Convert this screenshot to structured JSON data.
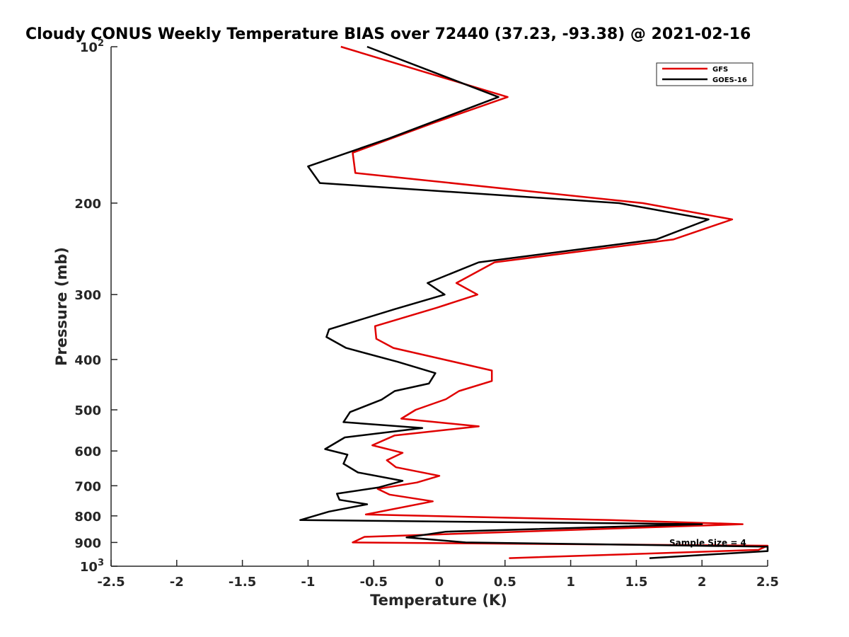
{
  "chart_data": {
    "type": "line",
    "title": "Cloudy CONUS Weekly Temperature BIAS over 72440 (37.23, -93.38) @ 2021-02-16",
    "xlabel": "Temperature (K)",
    "ylabel": "Pressure (mb)",
    "xlim": [
      -2.5,
      2.5
    ],
    "ylim": [
      100,
      1000
    ],
    "y_scale": "log",
    "y_reversed": true,
    "x_ticks": [
      "-2.5",
      "-2",
      "-1.5",
      "-1",
      "-0.5",
      "0",
      "0.5",
      "1",
      "1.5",
      "2",
      "2.5"
    ],
    "x_tick_values": [
      -2.5,
      -2,
      -1.5,
      -1,
      -0.5,
      0,
      0.5,
      1,
      1.5,
      2,
      2.5
    ],
    "y_ticks": [
      {
        "value": 100,
        "base": "10",
        "exp": "2"
      },
      {
        "value": 200,
        "label": "200"
      },
      {
        "value": 300,
        "label": "300"
      },
      {
        "value": 400,
        "label": "400"
      },
      {
        "value": 500,
        "label": "500"
      },
      {
        "value": 600,
        "label": "600"
      },
      {
        "value": 700,
        "label": "700"
      },
      {
        "value": 800,
        "label": "800"
      },
      {
        "value": 900,
        "label": "900"
      },
      {
        "value": 1000,
        "base": "10",
        "exp": "3"
      }
    ],
    "legend_position": "top-right",
    "grid": false,
    "annotation": "Sample Size = 4",
    "series": [
      {
        "name": "GFS",
        "color": "#e00000",
        "points": [
          [
            -0.75,
            100
          ],
          [
            0.52,
            125
          ],
          [
            -0.04,
            140
          ],
          [
            -0.66,
            160
          ],
          [
            -0.64,
            175
          ],
          [
            1.55,
            200
          ],
          [
            2.23,
            215
          ],
          [
            1.78,
            235
          ],
          [
            0.42,
            260
          ],
          [
            0.13,
            285
          ],
          [
            0.29,
            300
          ],
          [
            -0.02,
            318
          ],
          [
            -0.49,
            345
          ],
          [
            -0.48,
            365
          ],
          [
            -0.35,
            380
          ],
          [
            0.4,
            420
          ],
          [
            0.4,
            440
          ],
          [
            0.15,
            460
          ],
          [
            0.05,
            477
          ],
          [
            -0.18,
            500
          ],
          [
            -0.29,
            520
          ],
          [
            0.3,
            538
          ],
          [
            -0.34,
            560
          ],
          [
            -0.51,
            585
          ],
          [
            -0.28,
            605
          ],
          [
            -0.4,
            625
          ],
          [
            -0.33,
            645
          ],
          [
            0.0,
            670
          ],
          [
            -0.17,
            690
          ],
          [
            -0.47,
            710
          ],
          [
            -0.38,
            728
          ],
          [
            -0.05,
            750
          ],
          [
            -0.56,
            795
          ],
          [
            1.3,
            815
          ],
          [
            2.31,
            830
          ],
          [
            -0.57,
            878
          ],
          [
            -0.66,
            900
          ],
          [
            2.5,
            913
          ],
          [
            2.43,
            930
          ],
          [
            0.53,
            965
          ]
        ]
      },
      {
        "name": "GOES-16",
        "color": "#000000",
        "points": [
          [
            -0.55,
            100
          ],
          [
            0.45,
            125
          ],
          [
            -0.38,
            150
          ],
          [
            -1.0,
            170
          ],
          [
            -0.91,
            183
          ],
          [
            1.37,
            200
          ],
          [
            2.05,
            215
          ],
          [
            1.65,
            235
          ],
          [
            0.3,
            260
          ],
          [
            -0.09,
            285
          ],
          [
            0.04,
            300
          ],
          [
            -0.34,
            320
          ],
          [
            -0.84,
            350
          ],
          [
            -0.86,
            362
          ],
          [
            -0.71,
            380
          ],
          [
            -0.32,
            404
          ],
          [
            -0.03,
            425
          ],
          [
            -0.08,
            445
          ],
          [
            -0.34,
            460
          ],
          [
            -0.44,
            478
          ],
          [
            -0.68,
            505
          ],
          [
            -0.73,
            528
          ],
          [
            -0.13,
            542
          ],
          [
            -0.72,
            565
          ],
          [
            -0.87,
            595
          ],
          [
            -0.7,
            610
          ],
          [
            -0.73,
            635
          ],
          [
            -0.62,
            660
          ],
          [
            -0.28,
            685
          ],
          [
            -0.46,
            705
          ],
          [
            -0.78,
            725
          ],
          [
            -0.76,
            745
          ],
          [
            -0.55,
            760
          ],
          [
            -0.84,
            785
          ],
          [
            -1.06,
            815
          ],
          [
            2.0,
            830
          ],
          [
            0.05,
            858
          ],
          [
            -0.25,
            880
          ],
          [
            0.2,
            900
          ],
          [
            2.5,
            917
          ],
          [
            2.5,
            935
          ],
          [
            1.6,
            965
          ]
        ]
      }
    ]
  }
}
